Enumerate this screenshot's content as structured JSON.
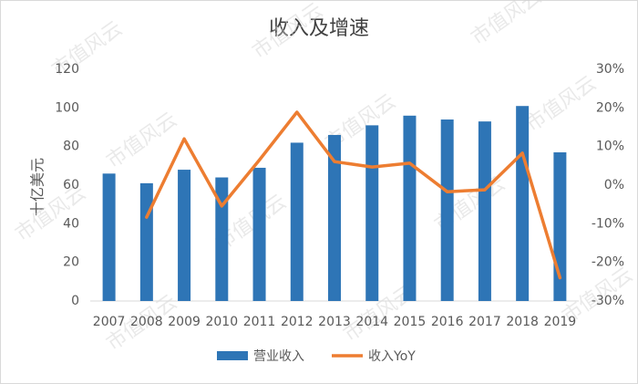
{
  "chart_data": {
    "type": "bar",
    "title": "收入及增速",
    "y_label": "十亿美元",
    "watermark": "市值风云",
    "categories": [
      "2007",
      "2008",
      "2009",
      "2010",
      "2011",
      "2012",
      "2013",
      "2014",
      "2015",
      "2016",
      "2017",
      "2018",
      "2019"
    ],
    "series": [
      {
        "name": "营业收入",
        "type": "bar",
        "axis": "y",
        "color": "#2e75b6",
        "values": [
          66,
          61,
          68,
          64,
          69,
          82,
          86,
          91,
          96,
          94,
          93,
          101,
          77
        ]
      },
      {
        "name": "收入YoY",
        "type": "line",
        "axis": "y2",
        "color": "#ed7d31",
        "values": [
          null,
          -8.3,
          12,
          -5.4,
          6.5,
          18.9,
          6.1,
          4.7,
          5.7,
          -1.7,
          -1.2,
          8.3,
          -24
        ]
      }
    ],
    "ylim": [
      0,
      120
    ],
    "yticks": [
      0,
      20,
      40,
      60,
      80,
      100,
      120
    ],
    "y2lim": [
      -30,
      30
    ],
    "y2ticks": [
      {
        "value": -30,
        "label": "-30%"
      },
      {
        "value": -20,
        "label": "-20%"
      },
      {
        "value": -10,
        "label": "-10%"
      },
      {
        "value": 0,
        "label": "0%"
      },
      {
        "value": 10,
        "label": "10%"
      },
      {
        "value": 20,
        "label": "20%"
      },
      {
        "value": 30,
        "label": "30%"
      }
    ],
    "grid": false,
    "legend": "bottom"
  }
}
